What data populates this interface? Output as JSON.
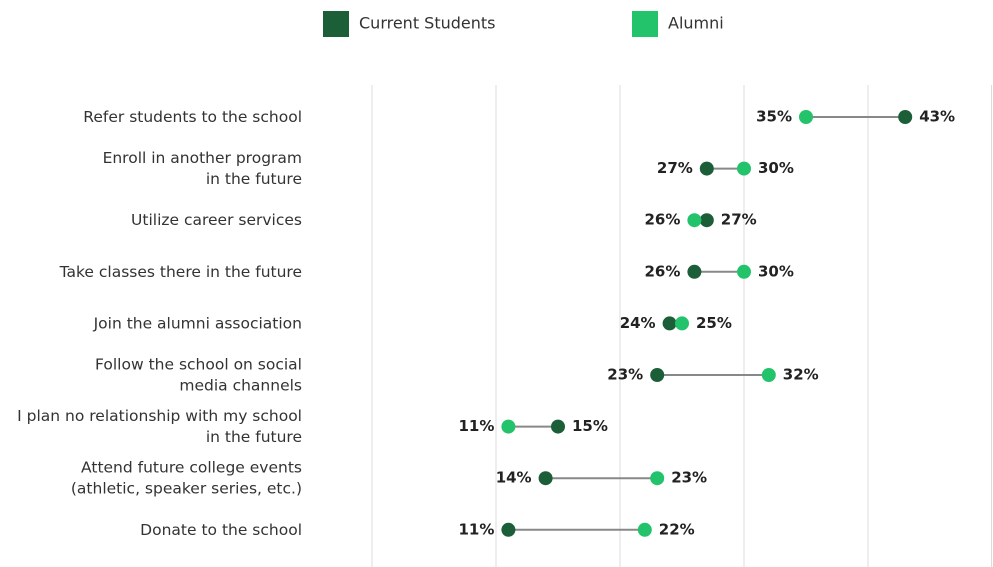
{
  "chart_data": {
    "type": "dumbbell",
    "categories": [
      "Refer students to the school",
      "Enroll in another program\nin the future",
      "Utilize career services",
      "Take classes there in the future",
      "Join the alumni association",
      "Follow the school on social\nmedia channels",
      "I plan no relationship with my school\nin the future",
      "Attend future college events\n(athletic, speaker series, etc.)",
      "Donate to the school"
    ],
    "series": [
      {
        "name": "Current Students",
        "color": "#1b5e37",
        "values": [
          43,
          27,
          27,
          26,
          24,
          23,
          15,
          14,
          11
        ],
        "value_labels": [
          "43%",
          "27%",
          "27%",
          "26%",
          "24%",
          "23%",
          "15%",
          "14%",
          "11%"
        ]
      },
      {
        "name": "Alumni",
        "color": "#22c36b",
        "values": [
          35,
          30,
          26,
          30,
          25,
          32,
          11,
          23,
          22
        ],
        "value_labels": [
          "35%",
          "30%",
          "26%",
          "30%",
          "25%",
          "32%",
          "11%",
          "23%",
          "22%"
        ]
      }
    ],
    "xlim": [
      0,
      50
    ],
    "xticks": [
      0,
      10,
      20,
      30,
      40,
      50
    ],
    "grid": true
  }
}
